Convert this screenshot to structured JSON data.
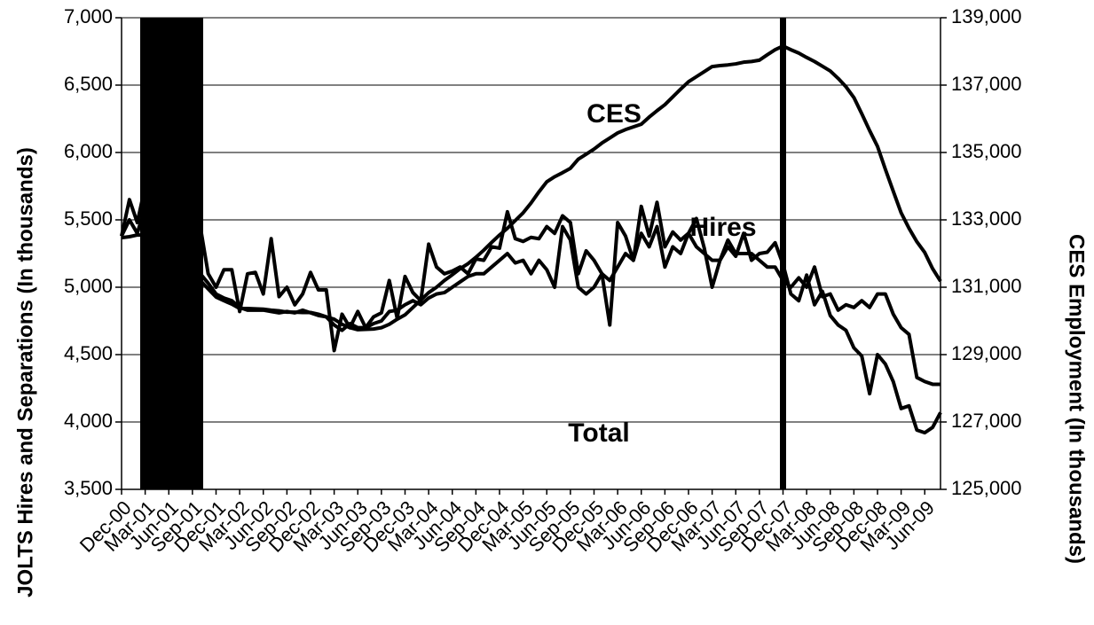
{
  "chart_data": {
    "type": "line",
    "y_label": "JOLTS Hires and Separations (In thousands)",
    "y2_label": "CES Employment (In thousands)",
    "categories": [
      "Dec-00",
      null,
      null,
      "Mar-01",
      null,
      null,
      "Jun-01",
      null,
      null,
      "Sep-01",
      null,
      null,
      "Dec-01",
      null,
      null,
      "Mar-02",
      null,
      null,
      "Jun-02",
      null,
      null,
      "Sep-02",
      null,
      null,
      "Dec-02",
      null,
      null,
      "Mar-03",
      null,
      null,
      "Jun-03",
      null,
      null,
      "Sep-03",
      null,
      null,
      "Dec-03",
      null,
      null,
      "Mar-04",
      null,
      null,
      "Jun-04",
      null,
      null,
      "Sep-04",
      null,
      null,
      "Dec-04",
      null,
      null,
      "Mar-05",
      null,
      null,
      "Jun-05",
      null,
      null,
      "Sep-05",
      null,
      null,
      "Dec-05",
      null,
      null,
      "Mar-06",
      null,
      null,
      "Jun-06",
      null,
      null,
      "Sep-06",
      null,
      null,
      "Dec-06",
      null,
      null,
      "Mar-07",
      null,
      null,
      "Jun-07",
      null,
      null,
      "Sep-07",
      null,
      null,
      "Dec-07",
      null,
      null,
      "Mar-08",
      null,
      null,
      "Jun-08",
      null,
      null,
      "Sep-08",
      null,
      null,
      "Dec-08",
      null,
      null,
      "Mar-09",
      null,
      null,
      "Jun-09",
      null,
      null
    ],
    "series": [
      {
        "name": "Hires",
        "color": "#000000",
        "values": [
          5380,
          5650,
          5480,
          5750,
          5600,
          5500,
          5400,
          5350,
          5300,
          5250,
          5450,
          5100,
          5000,
          5130,
          5130,
          4820,
          5100,
          5110,
          4950,
          5360,
          4930,
          5000,
          4870,
          4950,
          5110,
          4980,
          4980,
          4530,
          4800,
          4700,
          4820,
          4700,
          4780,
          4810,
          5050,
          4770,
          5080,
          4960,
          4900,
          5320,
          5150,
          5100,
          5120,
          5150,
          5100,
          5210,
          5200,
          5300,
          5290,
          5560,
          5360,
          5340,
          5370,
          5360,
          5450,
          5400,
          5530,
          5480,
          5100,
          5270,
          5200,
          5100,
          4720,
          5480,
          5380,
          5200,
          5600,
          5380,
          5630,
          5300,
          5410,
          5350,
          5400,
          5510,
          5290,
          5000,
          5200,
          5300,
          5230,
          5400,
          5200,
          5250,
          5260,
          5330,
          5170,
          4950,
          4900,
          5090,
          4870,
          4970,
          4790,
          4720,
          4680,
          4550,
          4490,
          4210,
          4500,
          4430,
          4300,
          4100,
          4120,
          3940,
          3920,
          3960,
          4070
        ]
      },
      {
        "name": "Total",
        "color": "#000000",
        "values": [
          5380,
          5500,
          5400,
          5600,
          5550,
          5450,
          5400,
          5300,
          5200,
          5150,
          5100,
          5030,
          4950,
          4920,
          4900,
          4850,
          4830,
          4830,
          4830,
          4820,
          4810,
          4820,
          4810,
          4830,
          4810,
          4790,
          4780,
          4720,
          4680,
          4730,
          4700,
          4700,
          4730,
          4750,
          4820,
          4830,
          4870,
          4900,
          4870,
          4920,
          4950,
          4960,
          5000,
          5040,
          5080,
          5100,
          5100,
          5150,
          5200,
          5250,
          5180,
          5200,
          5100,
          5200,
          5130,
          5000,
          5450,
          5350,
          5000,
          4950,
          5000,
          5100,
          5050,
          5150,
          5250,
          5200,
          5400,
          5300,
          5450,
          5150,
          5300,
          5250,
          5400,
          5300,
          5250,
          5200,
          5200,
          5350,
          5250,
          5250,
          5250,
          5200,
          5150,
          5150,
          5050,
          5000,
          5070,
          5000,
          5150,
          4930,
          4950,
          4830,
          4870,
          4850,
          4900,
          4850,
          4950,
          4950,
          4800,
          4700,
          4650,
          4330,
          4300,
          4280,
          4280
        ]
      },
      {
        "name": "CES",
        "color": "#000000",
        "axis": "y2",
        "values": [
          132470,
          132500,
          132550,
          132550,
          132450,
          132350,
          132200,
          132000,
          131800,
          131500,
          131200,
          130950,
          130710,
          130600,
          130500,
          130370,
          130370,
          130360,
          130350,
          130320,
          130300,
          130260,
          130260,
          130250,
          130250,
          130200,
          130120,
          130050,
          129900,
          129800,
          129740,
          129750,
          129760,
          129800,
          129900,
          130050,
          130180,
          130400,
          130620,
          130840,
          131000,
          131200,
          131370,
          131550,
          131700,
          131890,
          132100,
          132330,
          132550,
          132750,
          132980,
          133210,
          133500,
          133830,
          134130,
          134280,
          134400,
          134530,
          134800,
          134950,
          135100,
          135280,
          135430,
          135580,
          135680,
          135760,
          135840,
          136050,
          136240,
          136420,
          136650,
          136880,
          137100,
          137250,
          137400,
          137550,
          137580,
          137600,
          137630,
          137680,
          137700,
          137740,
          137900,
          138050,
          138160,
          138050,
          137950,
          137820,
          137700,
          137560,
          137420,
          137200,
          136950,
          136630,
          136150,
          135650,
          135180,
          134500,
          133850,
          133210,
          132750,
          132350,
          132030,
          131550,
          131180
        ]
      }
    ],
    "ylim": [
      3500,
      7000
    ],
    "yticks": [
      {
        "value": 3500,
        "label": "3,500"
      },
      {
        "value": 4000,
        "label": "4,000"
      },
      {
        "value": 4500,
        "label": "4,500"
      },
      {
        "value": 5000,
        "label": "5,000"
      },
      {
        "value": 5500,
        "label": "5,500"
      },
      {
        "value": 6000,
        "label": "6,000"
      },
      {
        "value": 6500,
        "label": "6,500"
      },
      {
        "value": 7000,
        "label": "7,000"
      }
    ],
    "y2lim": [
      125000,
      139000
    ],
    "y2ticks": [
      {
        "value": 125000,
        "label": "125,000"
      },
      {
        "value": 127000,
        "label": "127,000"
      },
      {
        "value": 129000,
        "label": "129,000"
      },
      {
        "value": 131000,
        "label": "131,000"
      },
      {
        "value": 133000,
        "label": "133,000"
      },
      {
        "value": 135000,
        "label": "135,000"
      },
      {
        "value": 137000,
        "label": "137,000"
      },
      {
        "value": 139000,
        "label": "139,000"
      }
    ],
    "grid": true
  }
}
